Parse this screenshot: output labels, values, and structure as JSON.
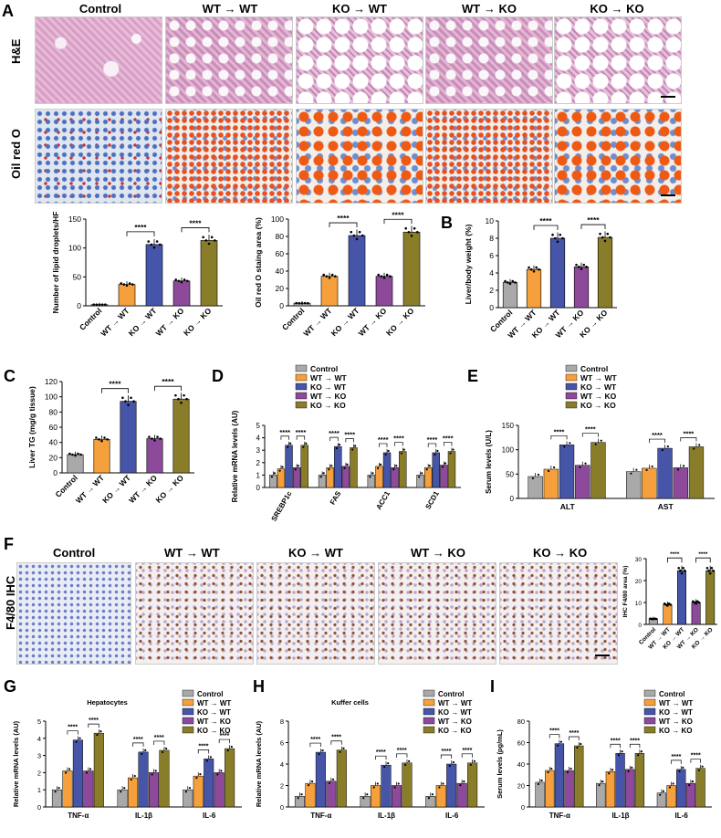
{
  "panel_labels": {
    "A": "A",
    "B": "B",
    "C": "C",
    "D": "D",
    "E": "E",
    "F": "F",
    "G": "G",
    "H": "H",
    "I": "I"
  },
  "columns": [
    "Control",
    "WT → WT",
    "KO → WT",
    "WT → KO",
    "KO → KO"
  ],
  "rows": {
    "he": "H&E",
    "oro": "Oil red O",
    "ihc": "F4/80 IHC"
  },
  "colors": {
    "control": "#a9a9a9",
    "wtwt": "#f5a03c",
    "kowt": "#4655a8",
    "wtko": "#8d4a9b",
    "koko": "#8a7d2a"
  },
  "sig": "****",
  "chart_data": [
    {
      "id": "A1",
      "type": "bar",
      "ylabel": "Number of lipid droplets/HF",
      "categories": [
        "Control",
        "WT → WT",
        "KO → WT",
        "WT → KO",
        "KO → KO"
      ],
      "values": [
        2,
        37,
        106,
        43,
        113
      ],
      "ylim": [
        0,
        150
      ],
      "yticks": [
        0,
        50,
        100,
        150
      ]
    },
    {
      "id": "A2",
      "type": "bar",
      "ylabel": "Oil red O staing area (%)",
      "categories": [
        "Control",
        "WT → WT",
        "KO → WT",
        "WT → KO",
        "KO → KO"
      ],
      "values": [
        3,
        34,
        81,
        34,
        85
      ],
      "ylim": [
        0,
        100
      ],
      "yticks": [
        0,
        20,
        40,
        60,
        80,
        100
      ]
    },
    {
      "id": "B",
      "type": "bar",
      "ylabel": "Liver/body weight (%)",
      "categories": [
        "Control",
        "WT → WT",
        "KO → WT",
        "WT → KO",
        "KO → KO"
      ],
      "values": [
        2.9,
        4.4,
        8.0,
        4.7,
        8.1
      ],
      "ylim": [
        0,
        10
      ],
      "yticks": [
        0,
        2,
        4,
        6,
        8,
        10
      ]
    },
    {
      "id": "C",
      "type": "bar",
      "ylabel": "Liver TG (mg/g tissue)",
      "categories": [
        "Control",
        "WT → WT",
        "KO → WT",
        "WT → KO",
        "KO → KO"
      ],
      "values": [
        24,
        44,
        94,
        45,
        97
      ],
      "ylim": [
        0,
        120
      ],
      "yticks": [
        0,
        20,
        40,
        60,
        80,
        100,
        120
      ]
    },
    {
      "id": "D",
      "type": "bar",
      "ylabel": "Relative mRNA levels (AU)",
      "legend": [
        "Control",
        "WT → WT",
        "KO → WT",
        "WT → KO",
        "KO → KO"
      ],
      "categories": [
        "SREBP1c",
        "FAS",
        "ACC1",
        "SCD1"
      ],
      "series": [
        [
          1.0,
          1.0,
          1.0,
          1.0
        ],
        [
          1.5,
          1.6,
          1.7,
          1.6
        ],
        [
          3.4,
          3.3,
          2.8,
          2.8
        ],
        [
          1.6,
          1.7,
          1.6,
          1.8
        ],
        [
          3.4,
          3.2,
          2.9,
          2.9
        ]
      ],
      "ylim": [
        0,
        5
      ],
      "yticks": [
        0,
        1,
        2,
        3,
        4,
        5
      ]
    },
    {
      "id": "E",
      "type": "bar",
      "ylabel": "Serum levels (U/L)",
      "legend": [
        "Control",
        "WT → WT",
        "KO → WT",
        "WT → KO",
        "KO → KO"
      ],
      "categories": [
        "ALT",
        "AST"
      ],
      "series": [
        [
          45,
          55
        ],
        [
          60,
          62
        ],
        [
          110,
          103
        ],
        [
          68,
          63
        ],
        [
          115,
          106
        ]
      ],
      "ylim": [
        0,
        150
      ],
      "yticks": [
        0,
        50,
        100,
        150
      ]
    },
    {
      "id": "F",
      "type": "bar",
      "ylabel": "IHC F4/80 area (%)",
      "categories": [
        "Control",
        "WT → WT",
        "KO → WT",
        "WT → KO",
        "KO → KO"
      ],
      "values": [
        2.5,
        9,
        24.5,
        10,
        24.5
      ],
      "ylim": [
        0,
        30
      ],
      "yticks": [
        0,
        10,
        20,
        30
      ]
    },
    {
      "id": "G",
      "type": "bar",
      "title": "Hepatocytes",
      "ylabel": "Relative mRNA levels (AU)",
      "legend": [
        "Control",
        "WT → WT",
        "KO → WT",
        "WT → KO",
        "KO → KO"
      ],
      "categories": [
        "TNF-α",
        "IL-1β",
        "IL-6"
      ],
      "series": [
        [
          1.0,
          1.0,
          1.0
        ],
        [
          2.1,
          1.7,
          1.8
        ],
        [
          3.9,
          3.2,
          2.8
        ],
        [
          2.1,
          2.0,
          2.0
        ],
        [
          4.3,
          3.3,
          3.4
        ]
      ],
      "ylim": [
        0,
        5
      ],
      "yticks": [
        0,
        1,
        2,
        3,
        4,
        5
      ]
    },
    {
      "id": "H",
      "type": "bar",
      "title": "Kuffer cells",
      "ylabel": "Relative mRNA levels (AU)",
      "legend": [
        "Control",
        "WT → WT",
        "KO → WT",
        "WT → KO",
        "KO → KO"
      ],
      "categories": [
        "TNF-α",
        "IL-1β",
        "IL-6"
      ],
      "series": [
        [
          1.0,
          1.0,
          1.0
        ],
        [
          2.2,
          2.0,
          2.0
        ],
        [
          5.1,
          3.9,
          4.0
        ],
        [
          2.4,
          2.0,
          2.2
        ],
        [
          5.3,
          4.1,
          4.1
        ]
      ],
      "ylim": [
        0,
        8
      ],
      "yticks": [
        0,
        2,
        4,
        6,
        8
      ]
    },
    {
      "id": "I",
      "type": "bar",
      "ylabel": "Serum levels (pg/mL)",
      "legend": [
        "Control",
        "WT → WT",
        "KO → WT",
        "WT → KO",
        "KO → KO"
      ],
      "categories": [
        "TNF-α",
        "IL-1β",
        "IL-6"
      ],
      "series": [
        [
          23,
          22,
          13
        ],
        [
          34,
          33,
          20
        ],
        [
          59,
          50,
          35
        ],
        [
          34,
          35,
          22
        ],
        [
          57,
          50,
          36
        ]
      ],
      "ylim": [
        0,
        80
      ],
      "yticks": [
        0,
        20,
        40,
        60,
        80
      ]
    }
  ]
}
